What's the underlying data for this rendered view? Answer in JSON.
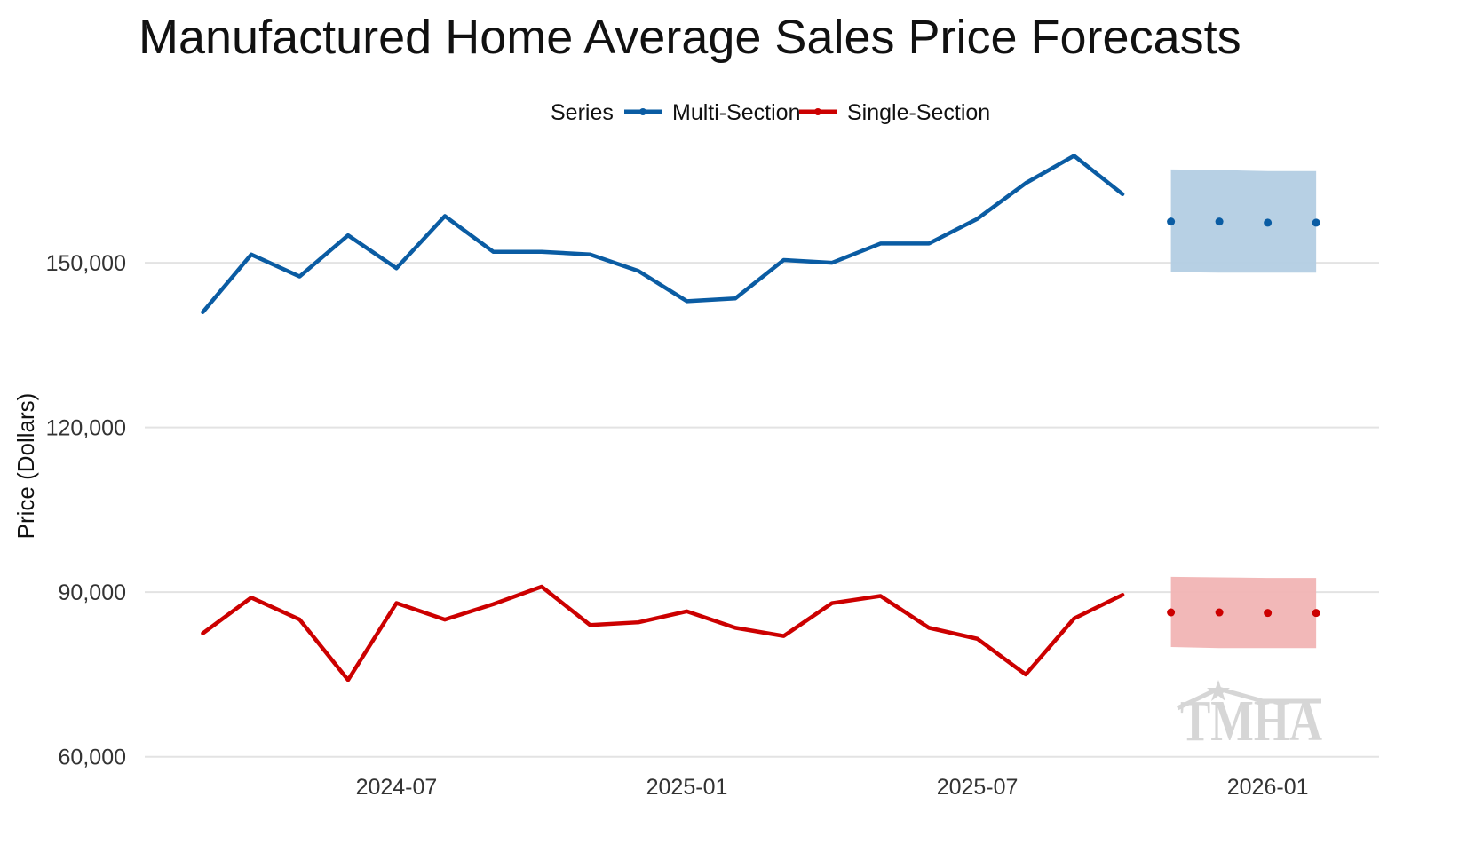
{
  "chart_data": {
    "type": "line",
    "title": "Manufactured Home Average Sales Price Forecasts",
    "xlabel": "",
    "ylabel": "Price (Dollars)",
    "ylim": [
      58500,
      172000
    ],
    "y_ticks": [
      60000,
      90000,
      120000,
      150000
    ],
    "y_tick_labels": [
      "60,000",
      "90,000",
      "120,000",
      "150,000"
    ],
    "x_tick_labels": [
      "2024-07",
      "2025-01",
      "2025-07",
      "2026-01"
    ],
    "x_tick_positions": [
      4,
      10,
      16,
      22
    ],
    "x_range": [
      -1.2,
      24.3
    ],
    "legend": {
      "title": "Series",
      "placement": "top-center"
    },
    "grid": true,
    "series": [
      {
        "name": "Multi-Section",
        "color": "#0a5ca3",
        "x": [
          0,
          1,
          2,
          3,
          4,
          5,
          6,
          7,
          8,
          9,
          10,
          11,
          12,
          13,
          14,
          15,
          16,
          17,
          18,
          19
        ],
        "values": [
          141000,
          151500,
          147500,
          155000,
          149000,
          158500,
          152000,
          152000,
          151500,
          148500,
          143000,
          143500,
          150500,
          150000,
          153500,
          153500,
          158000,
          164500,
          169500,
          162500
        ],
        "forecast": {
          "x": [
            20,
            21,
            22,
            23
          ],
          "values": [
            157500,
            157500,
            157300,
            157300
          ],
          "lower": [
            148300,
            148200,
            148200,
            148200
          ],
          "upper": [
            167000,
            166900,
            166700,
            166700
          ],
          "band_color": "#b3cde3"
        }
      },
      {
        "name": "Single-Section",
        "color": "#cc0000",
        "x": [
          0,
          1,
          2,
          3,
          4,
          5,
          6,
          7,
          8,
          9,
          10,
          11,
          12,
          13,
          14,
          15,
          16,
          17,
          18,
          19
        ],
        "values": [
          82500,
          89000,
          85000,
          74000,
          88000,
          85000,
          87800,
          91000,
          84000,
          84500,
          86500,
          83500,
          82000,
          88000,
          89300,
          83500,
          81500,
          75000,
          85200,
          89500
        ],
        "forecast": {
          "x": [
            20,
            21,
            22,
            23
          ],
          "values": [
            86300,
            86300,
            86200,
            86200
          ],
          "lower": [
            80000,
            79800,
            79800,
            79800
          ],
          "upper": [
            92800,
            92700,
            92600,
            92600
          ],
          "band_color": "#f1b4b4"
        }
      }
    ]
  },
  "watermark": {
    "logo_text": "TMHA",
    "color": "#d6d6d6"
  }
}
